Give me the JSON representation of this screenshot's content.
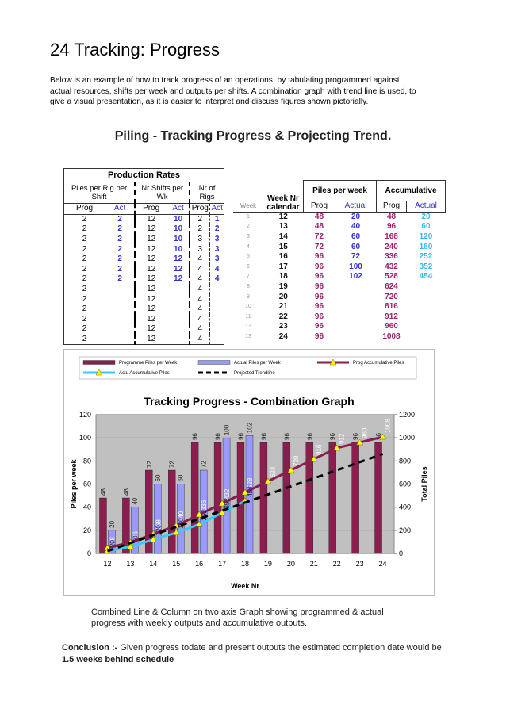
{
  "header": {
    "title": "24  Tracking: Progress"
  },
  "intro": "Below is an example of how to track progress of an operations, by tabulating programmed against actual resources, shifts per week and outputs per shifts. A combination graph with trend line is used, to give a visual presentation, as it is easier to interpret and discuss figures shown pictorially.",
  "figure_title": "Piling  -  Tracking Progress & Projecting Trend.",
  "production_table": {
    "title": "Production Rates",
    "groups": [
      "Piles per Rig per Shift",
      "Nr Shifts per Wk",
      "Nr of Rigs"
    ],
    "subheaders": [
      "Prog",
      "Act",
      "Prog",
      "Act",
      "Prog",
      "Act"
    ],
    "rows": [
      [
        2,
        2,
        12,
        10,
        2,
        1
      ],
      [
        2,
        2,
        12,
        10,
        2,
        2
      ],
      [
        2,
        2,
        12,
        10,
        3,
        3
      ],
      [
        2,
        2,
        12,
        10,
        3,
        3
      ],
      [
        2,
        2,
        12,
        12,
        4,
        3
      ],
      [
        2,
        2,
        12,
        12,
        4,
        4
      ],
      [
        2,
        2,
        12,
        12,
        4,
        4
      ],
      [
        2,
        null,
        12,
        null,
        4,
        null
      ],
      [
        2,
        null,
        12,
        null,
        4,
        null
      ],
      [
        2,
        null,
        12,
        null,
        4,
        null
      ],
      [
        2,
        null,
        12,
        null,
        4,
        null
      ],
      [
        2,
        null,
        12,
        null,
        4,
        null
      ],
      [
        2,
        null,
        12,
        null,
        4,
        null
      ]
    ]
  },
  "week_table": {
    "week_header": "Week",
    "calendar_header": "Week Nr calendar",
    "groups": [
      "Piles per week",
      "Accumulative"
    ],
    "subheaders": [
      "Prog",
      "Actual",
      "Prog",
      "Actual"
    ],
    "rows": [
      [
        1,
        12,
        48,
        20,
        48,
        20
      ],
      [
        2,
        13,
        48,
        40,
        96,
        60
      ],
      [
        3,
        14,
        72,
        60,
        168,
        120
      ],
      [
        4,
        15,
        72,
        60,
        240,
        180
      ],
      [
        5,
        16,
        96,
        72,
        336,
        252
      ],
      [
        6,
        17,
        96,
        100,
        432,
        352
      ],
      [
        7,
        18,
        96,
        102,
        528,
        454
      ],
      [
        8,
        19,
        96,
        null,
        624,
        null
      ],
      [
        9,
        20,
        96,
        null,
        720,
        null
      ],
      [
        10,
        21,
        96,
        null,
        816,
        null
      ],
      [
        11,
        22,
        96,
        null,
        912,
        null
      ],
      [
        12,
        23,
        96,
        null,
        960,
        null
      ],
      [
        13,
        24,
        96,
        null,
        1008,
        null
      ]
    ]
  },
  "chart_data": {
    "type": "combination",
    "title": "Tracking Progress    - Combination Graph",
    "x_label": "Week Nr",
    "y_label": "Piles per week",
    "y2_label": "Total Piles",
    "categories": [
      12,
      13,
      14,
      15,
      16,
      17,
      18,
      19,
      20,
      21,
      22,
      23,
      24
    ],
    "ylim": [
      0,
      120
    ],
    "yticks": [
      0,
      20,
      40,
      60,
      80,
      100,
      120
    ],
    "y2lim": [
      0,
      1200
    ],
    "y2ticks": [
      0,
      200,
      400,
      600,
      800,
      1000,
      1200
    ],
    "series": [
      {
        "name": "Programme Piles per Week",
        "type": "bar",
        "color": "#8b1e4f",
        "values": [
          48,
          48,
          72,
          72,
          96,
          96,
          96,
          96,
          96,
          96,
          96,
          96,
          96
        ]
      },
      {
        "name": "Actual Piles per Week",
        "type": "bar",
        "color": "#9999ff",
        "values": [
          20,
          40,
          60,
          60,
          72,
          100,
          102,
          null,
          null,
          null,
          null,
          null,
          null
        ]
      },
      {
        "name": "Prog Accumulative Piles",
        "type": "line",
        "axis": "y2",
        "color": "#8b1e4f",
        "marker": "triangle",
        "values": [
          48,
          96,
          168,
          240,
          336,
          432,
          528,
          624,
          720,
          816,
          912,
          960,
          1008
        ]
      },
      {
        "name": "Actu Accumulative Piles",
        "type": "line",
        "axis": "y2",
        "color": "#33ccff",
        "marker": "triangle",
        "values": [
          20,
          60,
          120,
          180,
          252,
          352,
          454,
          null,
          null,
          null,
          null,
          null,
          null
        ]
      },
      {
        "name": "Projected Trendline",
        "type": "line",
        "axis": "y2",
        "color": "#000000",
        "line_style": "dashed",
        "values": [
          20,
          90,
          160,
          230,
          300,
          370,
          440,
          510,
          580,
          650,
          720,
          790,
          860
        ]
      }
    ]
  },
  "caption": "Combined Line & Column on two axis Graph showing programmed & actual progress with weekly outputs and accumulative outputs.",
  "conclusion": {
    "lead": "Conclusion :-",
    "text": " Given progress todate and present outputs the estimated completion date would be ",
    "emphasis": "1.5 weeks behind schedule"
  }
}
